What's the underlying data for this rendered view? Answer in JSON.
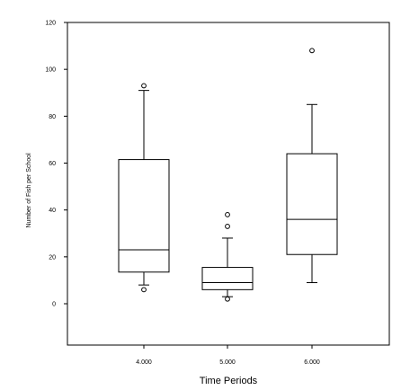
{
  "chart_data": {
    "type": "boxplot",
    "xlabel": "Time Periods",
    "ylabel": "Number of Fish per School",
    "ylim": [
      -18,
      120
    ],
    "y_ticks": [
      "0",
      "20",
      "40",
      "60",
      "80",
      "100",
      "120"
    ],
    "y_tick_values": [
      0,
      20,
      40,
      60,
      80,
      100,
      120
    ],
    "categories": [
      "4.000",
      "5.000",
      "6.000"
    ],
    "boxes": [
      {
        "category": "4.000",
        "whisker_low": 8,
        "q1": 13.5,
        "median": 23,
        "q3": 61.5,
        "whisker_high": 91,
        "outliers": [
          6,
          93
        ]
      },
      {
        "category": "5.000",
        "whisker_low": 3,
        "q1": 6,
        "median": 9,
        "q3": 15.5,
        "whisker_high": 28,
        "outliers": [
          2,
          33,
          38
        ]
      },
      {
        "category": "6.000",
        "whisker_low": 9,
        "q1": 21,
        "median": 36,
        "q3": 64,
        "whisker_high": 85,
        "outliers": [
          108
        ]
      }
    ],
    "grid": false,
    "legend": "none",
    "colors": {
      "stroke": "#000000",
      "background": "#ffffff"
    }
  }
}
